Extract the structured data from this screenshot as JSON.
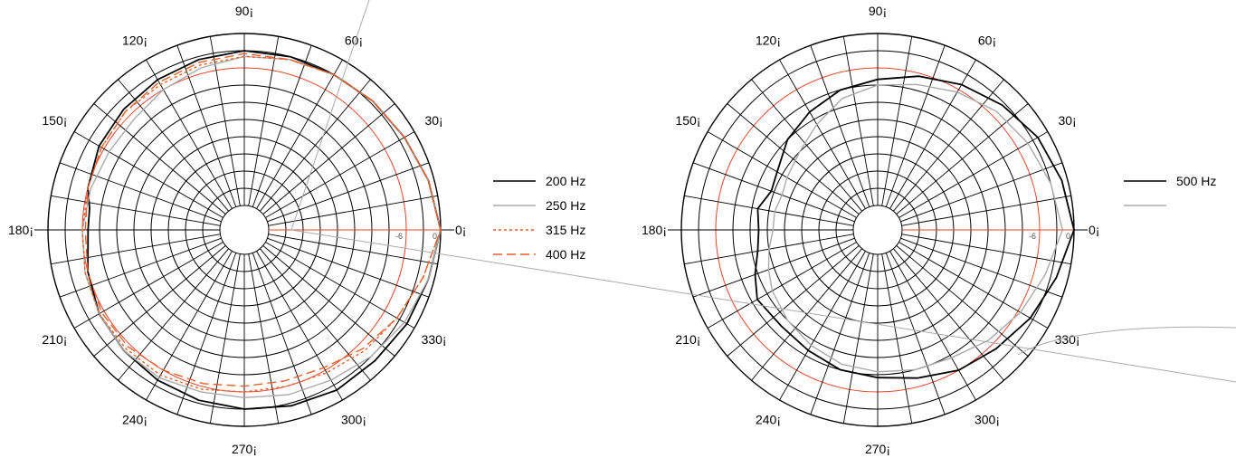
{
  "chart_data": [
    {
      "type": "polar",
      "title": "",
      "angle_labels": [
        "0¡",
        "30¡",
        "60¡",
        "90¡",
        "120¡",
        "150¡",
        "180¡",
        "210¡",
        "240¡",
        "270¡",
        "300¡",
        "330¡"
      ],
      "radial_labels": [
        "-6",
        "0"
      ],
      "rlim": [
        -30,
        0
      ],
      "grid": true,
      "legend_position": "right",
      "series": [
        {
          "name": "200 Hz",
          "color": "#000000",
          "style": "solid",
          "angles": [
            0,
            15,
            30,
            45,
            60,
            75,
            90,
            105,
            120,
            135,
            150,
            165,
            172,
            180,
            195,
            210,
            225,
            240,
            255,
            270,
            285,
            300,
            315,
            330,
            345,
            360
          ],
          "values": [
            0,
            -1,
            -2,
            -2.5,
            -3,
            -3,
            -3,
            -3.5,
            -4,
            -4.5,
            -5,
            -6,
            -7,
            -7,
            -6,
            -5,
            -4.5,
            -4,
            -3.5,
            -3,
            -2.5,
            -2,
            -2,
            -1.5,
            -1,
            0
          ]
        },
        {
          "name": "250 Hz",
          "color": "#aaaaaa",
          "style": "solid",
          "angles": [
            0,
            15,
            30,
            45,
            60,
            75,
            90,
            105,
            120,
            135,
            150,
            165,
            180,
            195,
            210,
            225,
            240,
            255,
            270,
            285,
            300,
            315,
            330,
            345,
            360
          ],
          "values": [
            0,
            -1,
            -2,
            -2.5,
            -3,
            -3.5,
            -4,
            -5,
            -6,
            -7,
            -7,
            -6.5,
            -6,
            -5.5,
            -5,
            -4.5,
            -4.5,
            -5,
            -5,
            -4.5,
            -4,
            -3,
            -2,
            -1,
            0
          ]
        },
        {
          "name": "315 Hz",
          "color": "#e8602c",
          "style": "dotted",
          "angles": [
            0,
            15,
            30,
            45,
            60,
            75,
            90,
            105,
            120,
            135,
            150,
            165,
            180,
            195,
            210,
            225,
            240,
            255,
            270,
            285,
            300,
            315,
            330,
            345,
            360
          ],
          "values": [
            0,
            -1,
            -2,
            -2.5,
            -3,
            -3.5,
            -4,
            -4.5,
            -5,
            -5,
            -5.5,
            -6,
            -6,
            -5.5,
            -5,
            -5,
            -5,
            -5.5,
            -6,
            -6,
            -5.5,
            -4.5,
            -3.5,
            -2,
            0
          ]
        },
        {
          "name": "400 Hz",
          "color": "#e8602c",
          "style": "dashed",
          "angles": [
            0,
            15,
            30,
            45,
            60,
            75,
            90,
            105,
            120,
            135,
            150,
            165,
            180,
            195,
            210,
            225,
            240,
            255,
            270,
            285,
            300,
            315,
            330,
            345,
            360
          ],
          "values": [
            0,
            -1,
            -2,
            -2.5,
            -3,
            -3.5,
            -3.5,
            -4,
            -4.5,
            -5,
            -5.5,
            -6,
            -6.5,
            -6,
            -5.5,
            -5.5,
            -6,
            -6.5,
            -7,
            -7,
            -6.5,
            -5,
            -3.5,
            -2,
            0
          ]
        }
      ]
    },
    {
      "type": "polar",
      "title": "",
      "angle_labels": [
        "0¡",
        "30¡",
        "60¡",
        "90¡",
        "120¡",
        "150¡",
        "180¡",
        "210¡",
        "240¡",
        "270¡",
        "300¡",
        "330¡"
      ],
      "radial_labels": [
        "-6",
        "0"
      ],
      "rlim": [
        -30,
        0
      ],
      "grid": true,
      "legend_position": "right",
      "series": [
        {
          "name": "500 Hz",
          "color": "#000000",
          "style": "solid",
          "angles": [
            0,
            15,
            30,
            45,
            60,
            75,
            90,
            105,
            120,
            135,
            150,
            160,
            170,
            180,
            190,
            200,
            210,
            225,
            240,
            255,
            270,
            285,
            300,
            315,
            330,
            345,
            360
          ],
          "values": [
            0,
            -1,
            -2,
            -3.5,
            -5,
            -6.5,
            -8,
            -9,
            -10.5,
            -12,
            -14,
            -14.5,
            -13,
            -13.5,
            -13,
            -11.5,
            -10,
            -10.5,
            -10,
            -9,
            -8.5,
            -7.5,
            -6,
            -5,
            -3.5,
            -2,
            0
          ]
        },
        {
          "name": "",
          "color": "#aaaaaa",
          "style": "solid",
          "angles": [
            0,
            15,
            30,
            45,
            60,
            75,
            90,
            105,
            120,
            135,
            150,
            160,
            170,
            180,
            190,
            200,
            210,
            225,
            240,
            255,
            270,
            285,
            300,
            315,
            330,
            345,
            360
          ],
          "values": [
            -2,
            -3,
            -4,
            -5,
            -6.5,
            -8,
            -9,
            -10.5,
            -13,
            -15,
            -16,
            -16.5,
            -16,
            -16,
            -15,
            -14,
            -13,
            -12,
            -11,
            -10,
            -9.5,
            -9,
            -8.5,
            -7,
            -5.5,
            -4,
            -2
          ]
        }
      ]
    }
  ]
}
